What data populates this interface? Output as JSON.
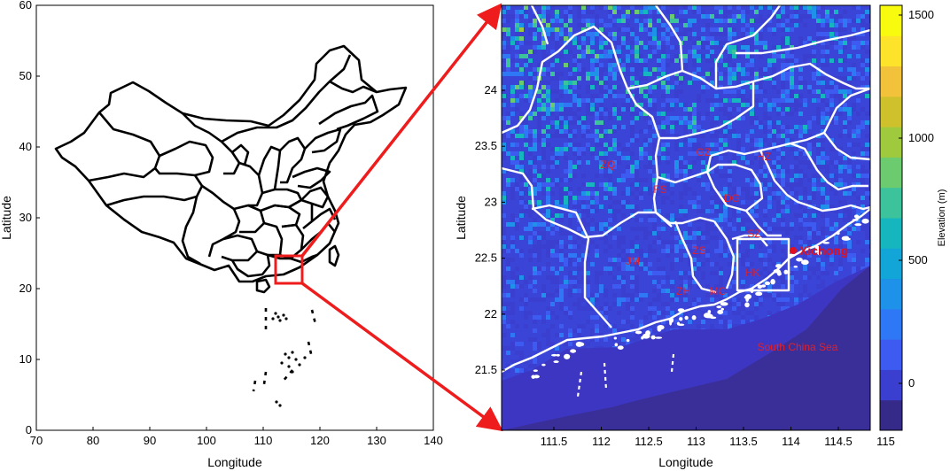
{
  "left_map": {
    "xlabel": "Longitude",
    "ylabel": "Latitude",
    "x_ticks": [
      "70",
      "80",
      "90",
      "100",
      "110",
      "120",
      "130",
      "140"
    ],
    "y_ticks": [
      "0",
      "10",
      "20",
      "30",
      "40",
      "50",
      "60"
    ],
    "xlim": [
      70,
      140
    ],
    "ylim": [
      0,
      60
    ]
  },
  "right_map": {
    "xlabel": "Longitude",
    "ylabel": "Latitude",
    "x_ticks": [
      "111.5",
      "112",
      "112.5",
      "113",
      "113.5",
      "114",
      "114.5",
      "115"
    ],
    "y_ticks": [
      "21.5",
      "22",
      "22.5",
      "23",
      "23.5",
      "24"
    ],
    "city_labels": [
      "ZQ",
      "FS",
      "GZ",
      "HZ",
      "DG",
      "SZ",
      "ZS",
      "JM",
      "HK",
      "ZH",
      "MC"
    ],
    "station_label": "Xichong",
    "sea_label": "South China Sea"
  },
  "colorbar": {
    "title": "Elevation (m)",
    "tick_labels": [
      "1500",
      "1000",
      "500",
      "0"
    ],
    "colors": [
      "#352a87",
      "#3b3fd0",
      "#3d5bf0",
      "#2f78f5",
      "#1e91e8",
      "#12a6d8",
      "#16b6bf",
      "#3cc39c",
      "#6ccb6f",
      "#9fca3e",
      "#cfc12c",
      "#f2c23a",
      "#fde42a",
      "#f9fb0e"
    ]
  },
  "colors": {
    "callout_red": "#ee1c1c",
    "boundary_white": "#ffffff",
    "land_blue": "#3a44d6",
    "sea_blue": "#3d36c2",
    "deep_sea": "#3a2f99"
  }
}
